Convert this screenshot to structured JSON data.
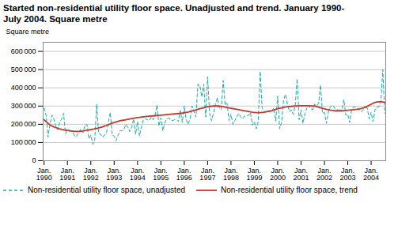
{
  "chart_data": {
    "type": "line",
    "title": "Started non-residential utility floor space. Unadjusted and trend. January 1990-\nJuly 2004. Square metre",
    "ylabel": "Square metre",
    "ylim": [
      0,
      650000
    ],
    "yticks": [
      0,
      {
        "value": 100000,
        "label": "100 000"
      },
      {
        "value": 200000,
        "label": "200 000"
      },
      {
        "value": 300000,
        "label": "300 000"
      },
      {
        "value": 400000,
        "label": "400 000"
      },
      {
        "value": 500000,
        "label": "500 000"
      },
      {
        "value": 600000,
        "label": "600 000"
      }
    ],
    "grid": true,
    "legend": "lower left",
    "categories": [
      "Jan.\n1990",
      null,
      null,
      null,
      null,
      null,
      null,
      null,
      null,
      null,
      null,
      null,
      "Jan.\n1991",
      null,
      null,
      null,
      null,
      null,
      null,
      null,
      null,
      null,
      null,
      null,
      "Jan.\n1992",
      null,
      null,
      null,
      null,
      null,
      null,
      null,
      null,
      null,
      null,
      null,
      "Jan.\n1993",
      null,
      null,
      null,
      null,
      null,
      null,
      null,
      null,
      null,
      null,
      null,
      "Jan.\n1994",
      null,
      null,
      null,
      null,
      null,
      null,
      null,
      null,
      null,
      null,
      null,
      "Jan.\n1995",
      null,
      null,
      null,
      null,
      null,
      null,
      null,
      null,
      null,
      null,
      null,
      "Jan.\n1996",
      null,
      null,
      null,
      null,
      null,
      null,
      null,
      null,
      null,
      null,
      null,
      "Jan.\n1997",
      null,
      null,
      null,
      null,
      null,
      null,
      null,
      null,
      null,
      null,
      null,
      "Jan.\n1998",
      null,
      null,
      null,
      null,
      null,
      null,
      null,
      null,
      null,
      null,
      null,
      "Jan.\n1999",
      null,
      null,
      null,
      null,
      null,
      null,
      null,
      null,
      null,
      null,
      null,
      "Jan.\n2000",
      null,
      null,
      null,
      null,
      null,
      null,
      null,
      null,
      null,
      null,
      null,
      "Jan.\n2001",
      null,
      null,
      null,
      null,
      null,
      null,
      null,
      null,
      null,
      null,
      null,
      "Jan.\n2002",
      null,
      null,
      null,
      null,
      null,
      null,
      null,
      null,
      null,
      null,
      null,
      "Jan.\n2003",
      null,
      null,
      null,
      null,
      null,
      null,
      null,
      null,
      null,
      null,
      null,
      "Jan.\n2004",
      null,
      null,
      null,
      null,
      null,
      null,
      null
    ],
    "series": [
      {
        "name": "Non-residential utility floor space, unadjusted",
        "color": "#1AADAC",
        "line_style": "dashed",
        "values": [
          290000,
          250000,
          130000,
          200000,
          250000,
          230000,
          190000,
          170000,
          210000,
          230000,
          260000,
          150000,
          170000,
          170000,
          160000,
          150000,
          130000,
          140000,
          160000,
          175000,
          155000,
          195000,
          200000,
          120000,
          140000,
          90000,
          110000,
          310000,
          150000,
          145000,
          130000,
          140000,
          150000,
          210000,
          265000,
          140000,
          135000,
          110000,
          140000,
          165000,
          165000,
          170000,
          200000,
          185000,
          160000,
          185000,
          230000,
          145000,
          215000,
          135000,
          185000,
          225000,
          230000,
          225000,
          220000,
          240000,
          225000,
          250000,
          305000,
          190000,
          235000,
          165000,
          210000,
          230000,
          235000,
          225000,
          220000,
          225000,
          225000,
          215000,
          275000,
          210000,
          300000,
          225000,
          200000,
          230000,
          300000,
          270000,
          240000,
          420000,
          415000,
          350000,
          420000,
          240000,
          460000,
          260000,
          220000,
          260000,
          310000,
          345000,
          290000,
          280000,
          440000,
          305000,
          315000,
          220000,
          255000,
          200000,
          220000,
          240000,
          260000,
          240000,
          230000,
          245000,
          245000,
          250000,
          265000,
          195000,
          215000,
          175000,
          215000,
          490000,
          290000,
          270000,
          270000,
          280000,
          265000,
          270000,
          290000,
          220000,
          355000,
          175000,
          210000,
          330000,
          365000,
          310000,
          270000,
          280000,
          255000,
          305000,
          450000,
          225000,
          280000,
          205000,
          260000,
          290000,
          305000,
          285000,
          280000,
          310000,
          300000,
          315000,
          415000,
          260000,
          265000,
          205000,
          265000,
          295000,
          305000,
          295000,
          270000,
          285000,
          275000,
          275000,
          335000,
          250000,
          255000,
          210000,
          280000,
          295000,
          295000,
          290000,
          275000,
          270000,
          280000,
          290000,
          290000,
          230000,
          265000,
          215000,
          280000,
          295000,
          295000,
          325000,
          500000,
          260000
        ]
      },
      {
        "name": "Non-residential utility floor space, trend",
        "color": "#C0392B",
        "line_style": "solid",
        "values": [
          225000,
          215000,
          205000,
          197000,
          191000,
          186000,
          182000,
          178000,
          175000,
          172000,
          170000,
          168000,
          166000,
          164000,
          163000,
          162000,
          161000,
          161000,
          161000,
          162000,
          163000,
          165000,
          167000,
          169000,
          171000,
          173000,
          175000,
          177000,
          180000,
          183000,
          186000,
          190000,
          194000,
          198000,
          202000,
          206000,
          210000,
          213000,
          216000,
          219000,
          221000,
          223000,
          225000,
          227000,
          229000,
          231000,
          233000,
          235000,
          237000,
          238000,
          240000,
          241000,
          242000,
          243000,
          244000,
          245000,
          246000,
          247000,
          248000,
          249000,
          250000,
          251000,
          252000,
          253000,
          254000,
          255000,
          256000,
          257000,
          258000,
          259000,
          260000,
          261000,
          263000,
          265000,
          267000,
          270000,
          273000,
          276000,
          279000,
          282000,
          285000,
          288000,
          291000,
          294000,
          296000,
          298000,
          299000,
          300000,
          300000,
          300000,
          299000,
          298000,
          296000,
          294000,
          292000,
          290000,
          288000,
          286000,
          284000,
          282000,
          280000,
          278000,
          276000,
          274000,
          272000,
          270000,
          268000,
          266000,
          265000,
          264000,
          264000,
          264000,
          265000,
          266000,
          268000,
          270000,
          272000,
          275000,
          278000,
          282000,
          285000,
          288000,
          290000,
          293000,
          295000,
          296000,
          297000,
          298000,
          299000,
          300000,
          301000,
          302000,
          302000,
          302000,
          302000,
          302000,
          302000,
          301000,
          300000,
          299000,
          297000,
          294000,
          291000,
          288000,
          285000,
          282000,
          280000,
          278000,
          276000,
          275000,
          274000,
          274000,
          274000,
          274000,
          275000,
          276000,
          277000,
          278000,
          279000,
          280000,
          281000,
          282000,
          284000,
          287000,
          290000,
          294000,
          299000,
          304000,
          310000,
          315000,
          320000,
          322000,
          323000,
          323000,
          322000,
          320000
        ]
      }
    ]
  }
}
